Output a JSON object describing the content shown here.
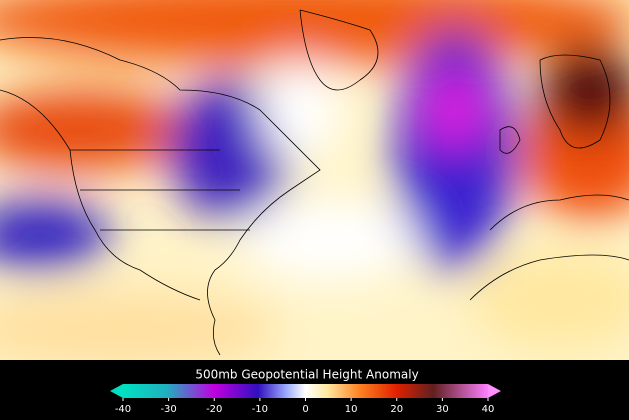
{
  "title": "500mb Geopotential Height Anomaly",
  "colorbar": {
    "range": [
      -40,
      40
    ],
    "ticks": [
      -40,
      -30,
      -20,
      -10,
      0,
      10,
      20,
      30,
      40
    ]
  }
}
